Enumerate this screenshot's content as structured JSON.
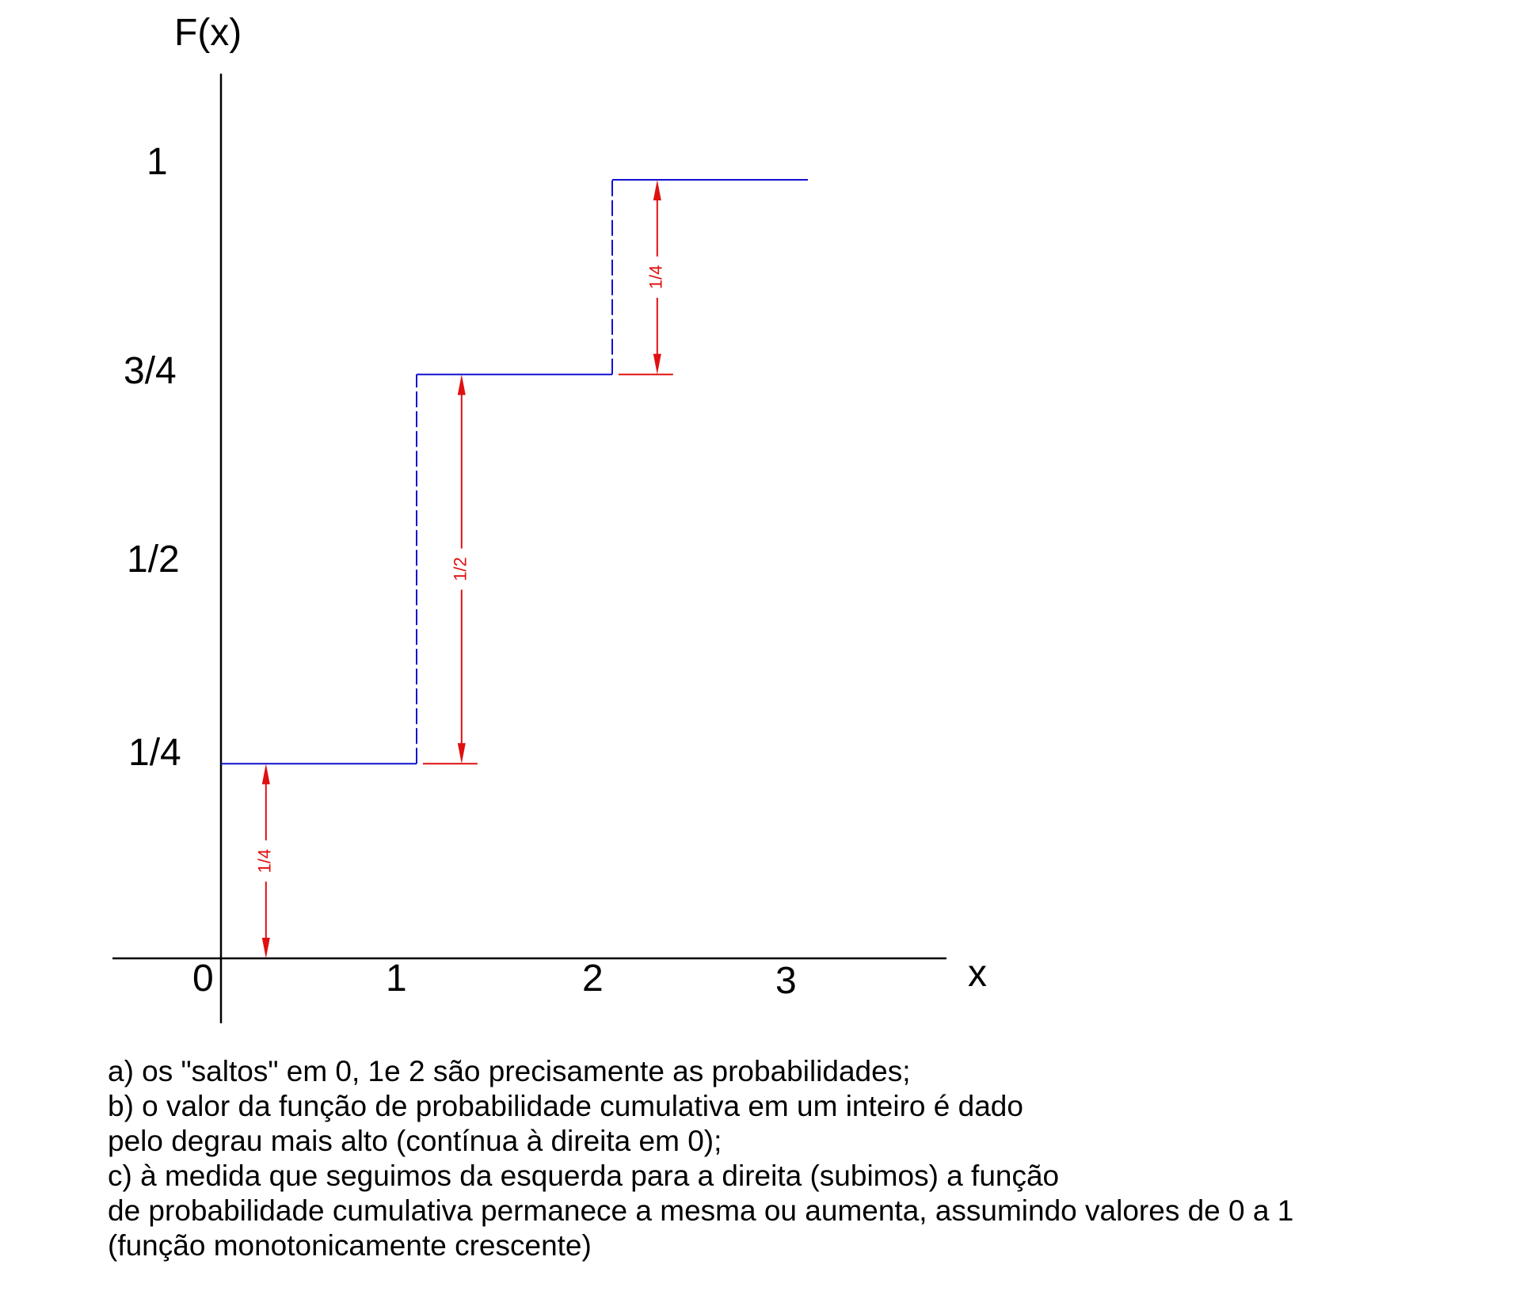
{
  "chart_data": {
    "type": "line",
    "subtype": "step",
    "ylabel": "F(x)",
    "xlabel": "x",
    "origin_label": "0",
    "xticks": [
      "1",
      "2",
      "3"
    ],
    "yticks": [
      "1/4",
      "1/2",
      "3/4",
      "1"
    ],
    "xlim": [
      -0.5,
      3.7
    ],
    "ylim": [
      0,
      1.1
    ],
    "grid": false,
    "steps": [
      {
        "x_from": 0,
        "x_to": 1,
        "y": 0.25
      },
      {
        "x_from": 1,
        "x_to": 2,
        "y": 0.75
      },
      {
        "x_from": 2,
        "x_to": 3,
        "y": 1.0
      }
    ],
    "jumps": [
      {
        "x": 0,
        "from": 0,
        "to": 0.25,
        "label": "1/4"
      },
      {
        "x": 1,
        "from": 0.25,
        "to": 0.75,
        "label": "1/2"
      },
      {
        "x": 2,
        "from": 0.75,
        "to": 1.0,
        "label": "1/4"
      }
    ],
    "colors": {
      "step_line": "#1010d0",
      "dimension": "#e01010",
      "axis": "#000000"
    }
  },
  "notes": [
    "a) os \"saltos\" em 0, 1e 2 são precisamente as probabilidades;",
    "b) o valor da função de probabilidade cumulativa em um inteiro é dado",
    "pelo degrau mais alto (contínua à direita em 0);",
    "c) à medida que seguimos da esquerda para a direita (subimos) a função",
    "de probabilidade cumulativa permanece a mesma ou aumenta, assumindo valores de 0 a 1",
    "(função monotonicamente crescente)"
  ]
}
